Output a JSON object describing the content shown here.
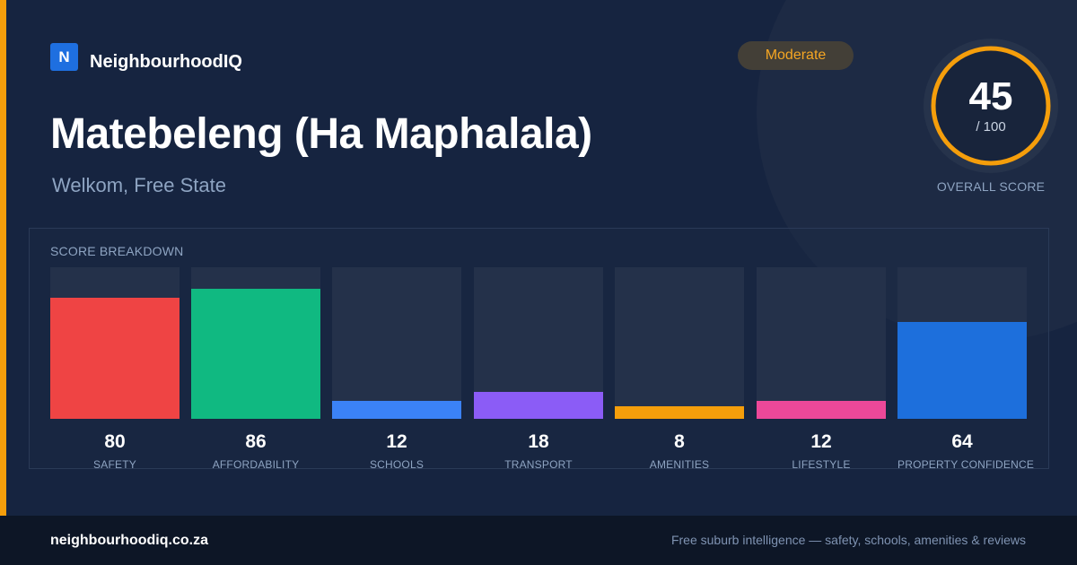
{
  "brand": {
    "logo_letter": "N",
    "name": "NeighbourhoodIQ"
  },
  "badge": {
    "label": "Moderate",
    "color": "#f5a623"
  },
  "suburb": {
    "name": "Matebeleng (Ha Maphalala)",
    "location": "Welkom, Free State"
  },
  "overall": {
    "score": 45,
    "score_text": "45",
    "max_text": "/ 100",
    "label": "OVERALL SCORE",
    "ring_color": "#f59e0b"
  },
  "breakdown": {
    "title": "SCORE BREAKDOWN",
    "metrics": [
      {
        "label": "SAFETY",
        "value": 80,
        "value_text": "80",
        "color": "#ef4444"
      },
      {
        "label": "AFFORDABILITY",
        "value": 86,
        "value_text": "86",
        "color": "#10b981"
      },
      {
        "label": "SCHOOLS",
        "value": 12,
        "value_text": "12",
        "color": "#3b82f6"
      },
      {
        "label": "TRANSPORT",
        "value": 18,
        "value_text": "18",
        "color": "#8b5cf6"
      },
      {
        "label": "AMENITIES",
        "value": 8,
        "value_text": "8",
        "color": "#f59e0b"
      },
      {
        "label": "LIFESTYLE",
        "value": 12,
        "value_text": "12",
        "color": "#ec4899"
      },
      {
        "label": "PROPERTY CONFIDENCE",
        "value": 64,
        "value_text": "64",
        "color": "#1d6fdc"
      }
    ]
  },
  "footer": {
    "url": "neighbourhoodiq.co.za",
    "tagline": "Free suburb intelligence — safety, schools, amenities & reviews"
  }
}
